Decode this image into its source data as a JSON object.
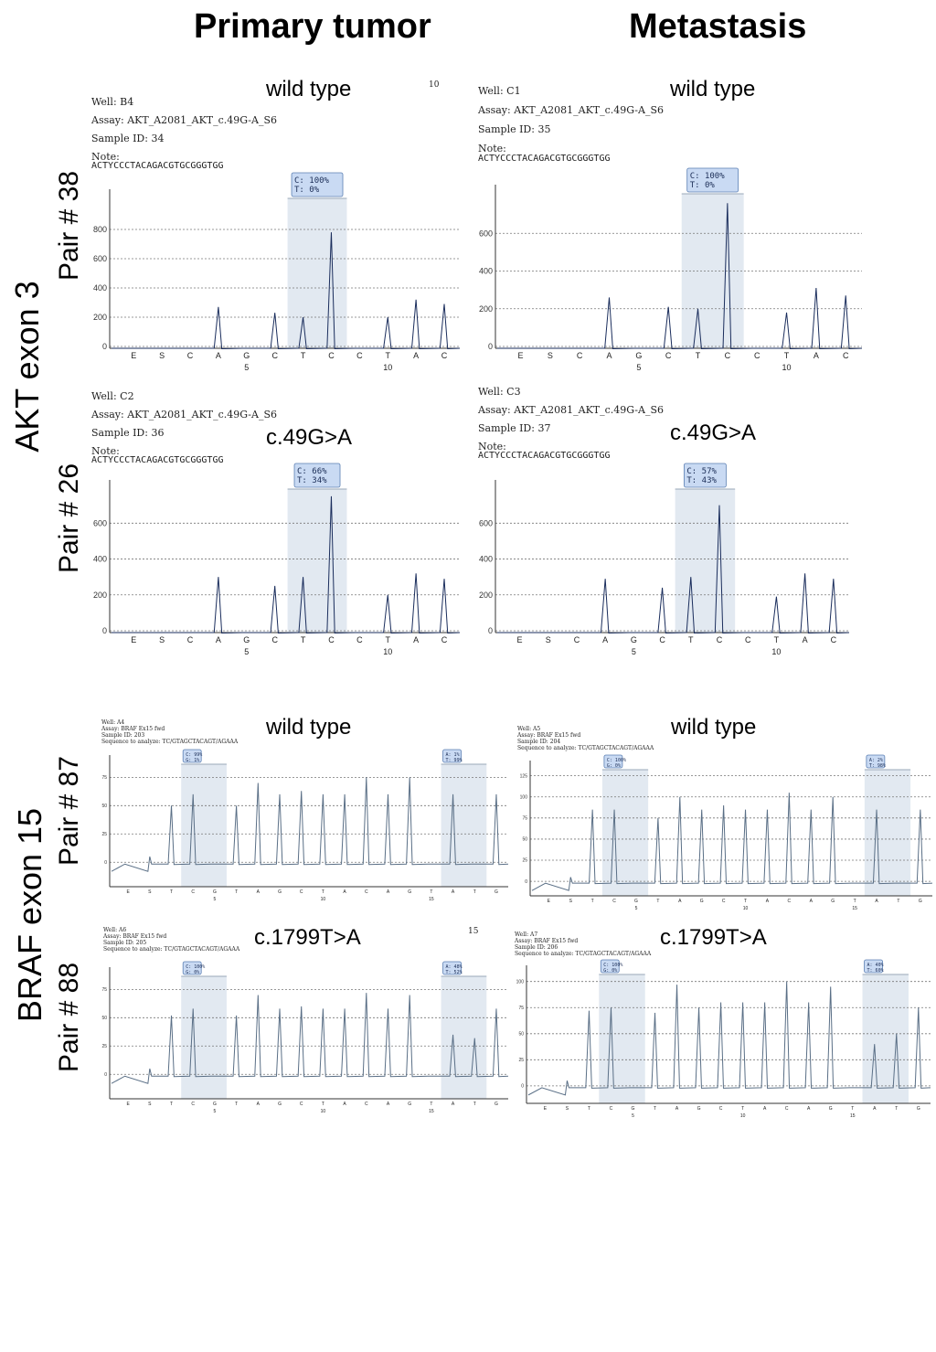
{
  "headers": {
    "primary": "Primary tumor",
    "metastasis": "Metastasis"
  },
  "genes": {
    "akt": "AKT exon 3",
    "braf": "BRAF exon 15"
  },
  "pairs": {
    "p38": "Pair # 38",
    "p26": "Pair # 26",
    "p87": "Pair # 87",
    "p88": "Pair # 88"
  },
  "chart_data": [
    {
      "type": "line",
      "status": "wild type",
      "well": "Well: B4",
      "assay": "Assay: AKT_A2081_AKT_c.49G-A_S6",
      "sample": "Sample ID: 34",
      "note": "Note:",
      "sequence": "ACTYCCCTACAGACGTGCGGGTGG",
      "corner": "10",
      "call": [
        "C: 100%",
        "T: 0%"
      ],
      "ylim": [
        0,
        1000
      ],
      "yticks": [
        0,
        200,
        400,
        600,
        800
      ],
      "dispensation": [
        "E",
        "S",
        "C",
        "A",
        "G",
        "C",
        "T",
        "C",
        "C",
        "T",
        "A",
        "C"
      ],
      "xnums": {
        "5": "5",
        "10": "10"
      },
      "peaks": [
        0,
        0,
        0,
        270,
        0,
        230,
        200,
        780,
        0,
        200,
        320,
        290
      ],
      "highlight": [
        6,
        7
      ]
    },
    {
      "type": "line",
      "status": "wild type",
      "well": "Well: C1",
      "assay": "Assay: AKT_A2081_AKT_c.49G-A_S6",
      "sample": "Sample ID: 35",
      "note": "Note:",
      "sequence": "ACTYCCCTACAGACGTGCGGGTGG",
      "call": [
        "C: 100%",
        "T: 0%"
      ],
      "ylim": [
        0,
        800
      ],
      "yticks": [
        0,
        200,
        400,
        600
      ],
      "dispensation": [
        "E",
        "S",
        "C",
        "A",
        "G",
        "C",
        "T",
        "C",
        "C",
        "T",
        "A",
        "C"
      ],
      "xnums": {
        "5": "5",
        "10": "10"
      },
      "peaks": [
        0,
        0,
        0,
        260,
        0,
        210,
        200,
        760,
        0,
        180,
        310,
        270
      ],
      "highlight": [
        6,
        7
      ]
    },
    {
      "type": "line",
      "status": "c.49G>A",
      "well": "Well: C2",
      "assay": "Assay: AKT_A2081_AKT_c.49G-A_S6",
      "sample": "Sample ID: 36",
      "note": "Note:",
      "sequence": "ACTYCCCTACAGACGTGCGGGTGG",
      "call": [
        "C: 66%",
        "T: 34%"
      ],
      "ylim": [
        0,
        780
      ],
      "yticks": [
        0,
        200,
        400,
        600
      ],
      "dispensation": [
        "E",
        "S",
        "C",
        "A",
        "G",
        "C",
        "T",
        "C",
        "C",
        "T",
        "A",
        "C"
      ],
      "xnums": {
        "5": "5",
        "10": "10"
      },
      "peaks": [
        0,
        0,
        0,
        300,
        0,
        250,
        300,
        750,
        0,
        200,
        320,
        290
      ],
      "highlight": [
        6,
        7
      ]
    },
    {
      "type": "line",
      "status": "c.49G>A",
      "well": "Well: C3",
      "assay": "Assay: AKT_A2081_AKT_c.49G-A_S6",
      "sample": "Sample ID: 37",
      "note": "Note:",
      "sequence": "ACTYCCCTACAGACGTGCGGGTGG",
      "call": [
        "C: 57%",
        "T: 43%"
      ],
      "ylim": [
        0,
        780
      ],
      "yticks": [
        0,
        200,
        400,
        600
      ],
      "dispensation": [
        "E",
        "S",
        "C",
        "A",
        "G",
        "C",
        "T",
        "C",
        "C",
        "T",
        "A",
        "C"
      ],
      "xnums": {
        "5": "5",
        "10": "10"
      },
      "peaks": [
        0,
        0,
        0,
        290,
        0,
        240,
        300,
        700,
        0,
        190,
        320,
        290
      ],
      "highlight": [
        6,
        7
      ]
    },
    {
      "type": "line",
      "status": "wild type",
      "well": "Well: A4",
      "assay": "Assay: BRAF Ex15 fwd",
      "sample": "Sample ID: 203",
      "note": "Sequence to analyze: TC/GTAGCTACAGT/AGAAA",
      "call": [
        "C: 99%",
        "G: 1%"
      ],
      "call2": [
        "A: 1%",
        "T: 99%"
      ],
      "ylim": [
        -20,
        85
      ],
      "yticks": [
        0,
        25,
        50,
        75
      ],
      "dispensation": [
        "E",
        "S",
        "T",
        "C",
        "G",
        "T",
        "A",
        "G",
        "C",
        "T",
        "A",
        "C",
        "A",
        "G",
        "T",
        "A",
        "T",
        "G"
      ],
      "xnums": {
        "5": "5",
        "10": "10",
        "15": "15"
      },
      "peaks": [
        0,
        5,
        50,
        60,
        0,
        50,
        70,
        60,
        63,
        60,
        60,
        75,
        60,
        75,
        0,
        60,
        0,
        60
      ],
      "highlight": [
        3,
        4
      ],
      "highlight2": [
        15,
        16
      ]
    },
    {
      "type": "line",
      "status": "wild type",
      "well": "Well: A5",
      "assay": "Assay: BRAF Ex15 fwd",
      "sample": "Sample ID: 204",
      "note": "Sequence to analyze: TC/GTAGCTACAGT/AGAAA",
      "call": [
        "C: 100%",
        "G: 0%"
      ],
      "call2": [
        "A: 2%",
        "T: 98%"
      ],
      "ylim": [
        -15,
        130
      ],
      "yticks": [
        0,
        25,
        50,
        75,
        100,
        125
      ],
      "dispensation": [
        "E",
        "S",
        "T",
        "C",
        "G",
        "T",
        "A",
        "G",
        "C",
        "T",
        "A",
        "C",
        "A",
        "G",
        "T",
        "A",
        "T",
        "G"
      ],
      "xnums": {
        "5": "5",
        "10": "10",
        "15": "15"
      },
      "peaks": [
        0,
        5,
        85,
        85,
        0,
        75,
        100,
        85,
        90,
        85,
        85,
        105,
        85,
        100,
        0,
        85,
        0,
        85
      ],
      "highlight": [
        3,
        4
      ],
      "highlight2": [
        15,
        16
      ]
    },
    {
      "type": "line",
      "status": "c.1799T>A",
      "well": "Well: A6",
      "assay": "Assay: BRAF Ex15 fwd",
      "sample": "Sample ID: 205",
      "note": "Sequence to analyze: TC/GTAGCTACAGT/AGAAA",
      "corner": "15",
      "call": [
        "C: 100%",
        "G: 0%"
      ],
      "call2": [
        "A: 48%",
        "T: 52%"
      ],
      "ylim": [
        -20,
        85
      ],
      "yticks": [
        0,
        25,
        50,
        75
      ],
      "dispensation": [
        "E",
        "S",
        "T",
        "C",
        "G",
        "T",
        "A",
        "G",
        "C",
        "T",
        "A",
        "C",
        "A",
        "G",
        "T",
        "A",
        "T",
        "G"
      ],
      "xnums": {
        "5": "5",
        "10": "10",
        "15": "15"
      },
      "peaks": [
        0,
        5,
        52,
        58,
        0,
        52,
        70,
        58,
        60,
        58,
        58,
        72,
        58,
        70,
        0,
        35,
        32,
        58
      ],
      "highlight": [
        3,
        4
      ],
      "highlight2": [
        15,
        16
      ]
    },
    {
      "type": "line",
      "status": "c.1799T>A",
      "well": "Well: A7",
      "assay": "Assay: BRAF Ex15 fwd",
      "sample": "Sample ID: 206",
      "note": "Sequence to analyze: TC/GTAGCTACAGT/AGAAA",
      "call": [
        "C: 100%",
        "G: 0%"
      ],
      "call2": [
        "A: 40%",
        "T: 60%"
      ],
      "ylim": [
        -15,
        105
      ],
      "yticks": [
        0,
        25,
        50,
        75,
        100
      ],
      "dispensation": [
        "E",
        "S",
        "T",
        "C",
        "G",
        "T",
        "A",
        "G",
        "C",
        "T",
        "A",
        "C",
        "A",
        "G",
        "T",
        "A",
        "T",
        "G"
      ],
      "xnums": {
        "5": "5",
        "10": "10",
        "15": "15"
      },
      "peaks": [
        0,
        5,
        72,
        75,
        0,
        70,
        97,
        75,
        80,
        80,
        80,
        100,
        80,
        95,
        0,
        40,
        50,
        75
      ],
      "highlight": [
        3,
        4
      ],
      "highlight2": [
        15,
        16
      ]
    }
  ]
}
